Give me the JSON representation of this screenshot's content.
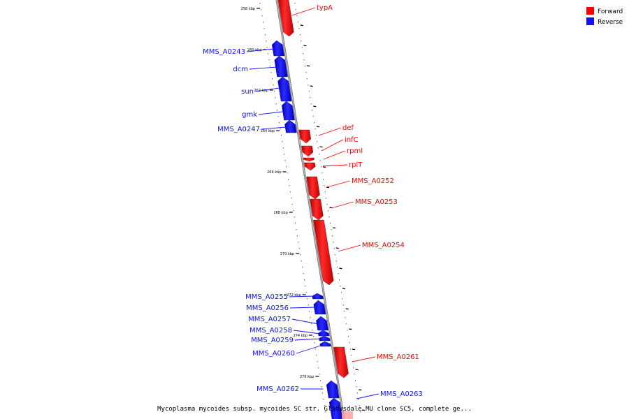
{
  "colors": {
    "forward": "#ff0000",
    "reverse": "#1010ff",
    "backbone": "#888888"
  },
  "legend": [
    {
      "label": "Forward",
      "strand": "forward"
    },
    {
      "label": "Reverse",
      "strand": "reverse"
    }
  ],
  "caption": "Mycoplasma mycoides subsp. mycoides SC str. Gladysdale MU clone SC5, complete ge...",
  "tick_labels": [
    "258 kbp",
    "260 kbp",
    "262 kbp",
    "264 kbp",
    "266 kbp",
    "268 kbp",
    "270 kbp",
    "272 kbp",
    "274 kbp",
    "276 kbp"
  ],
  "genes": [
    {
      "name": "typA",
      "strand": "forward"
    },
    {
      "name": "MMS_A0243",
      "strand": "reverse"
    },
    {
      "name": "dcm",
      "strand": "reverse"
    },
    {
      "name": "sun",
      "strand": "reverse"
    },
    {
      "name": "gmk",
      "strand": "reverse"
    },
    {
      "name": "MMS_A0247",
      "strand": "reverse"
    },
    {
      "name": "def",
      "strand": "forward"
    },
    {
      "name": "infC",
      "strand": "forward"
    },
    {
      "name": "rpmI",
      "strand": "forward"
    },
    {
      "name": "rplT",
      "strand": "forward"
    },
    {
      "name": "MMS_A0252",
      "strand": "forward"
    },
    {
      "name": "MMS_A0253",
      "strand": "forward"
    },
    {
      "name": "MMS_A0254",
      "strand": "forward"
    },
    {
      "name": "MMS_A0255",
      "strand": "reverse"
    },
    {
      "name": "MMS_A0256",
      "strand": "reverse"
    },
    {
      "name": "MMS_A0257",
      "strand": "reverse"
    },
    {
      "name": "MMS_A0258",
      "strand": "reverse"
    },
    {
      "name": "MMS_A0259",
      "strand": "reverse"
    },
    {
      "name": "MMS_A0260",
      "strand": "reverse"
    },
    {
      "name": "MMS_A0261",
      "strand": "forward"
    },
    {
      "name": "MMS_A0262",
      "strand": "reverse"
    },
    {
      "name": "MMS_A0263",
      "strand": "reverse"
    }
  ]
}
